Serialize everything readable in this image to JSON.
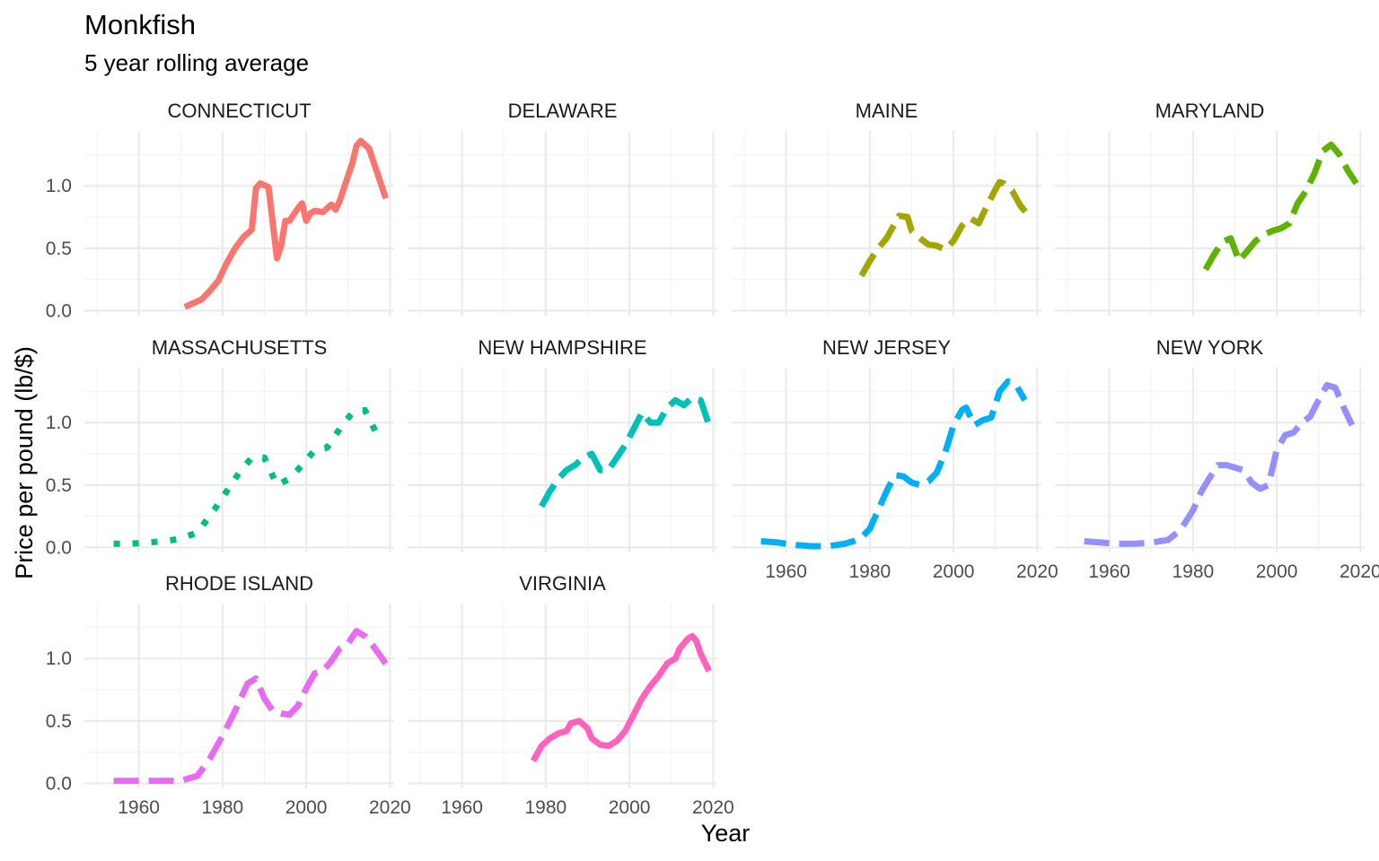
{
  "chart_data": {
    "type": "line",
    "title": "Monkfish",
    "subtitle": "5 year rolling average",
    "xlabel": "Year",
    "ylabel": "Price per pound (lb/$)",
    "xlim": [
      1947,
      2021
    ],
    "ylim": [
      -0.04,
      1.44
    ],
    "x_ticks": [
      1960,
      1980,
      2000,
      2020
    ],
    "y_ticks": [
      0.0,
      0.5,
      1.0
    ],
    "x_tick_labels": [
      "1960",
      "1980",
      "2000",
      "2020"
    ],
    "y_tick_labels": [
      "0.0",
      "0.5",
      "1.0"
    ],
    "grid": true,
    "legend": "none",
    "facets": [
      {
        "name": "CONNECTICUT",
        "color": "#F8766D",
        "dash": "solid",
        "x": [
          1971,
          1973,
          1975,
          1977,
          1979,
          1981,
          1983,
          1985,
          1987,
          1988,
          1989,
          1991,
          1993,
          1994,
          1995,
          1996,
          1998,
          1999,
          2000,
          2001,
          2002,
          2004,
          2006,
          2007,
          2008,
          2010,
          2011,
          2012,
          2013,
          2015,
          2017,
          2019
        ],
        "y": [
          0.03,
          0.06,
          0.09,
          0.16,
          0.24,
          0.38,
          0.5,
          0.59,
          0.65,
          0.98,
          1.02,
          0.99,
          0.42,
          0.52,
          0.72,
          0.72,
          0.82,
          0.86,
          0.72,
          0.78,
          0.8,
          0.79,
          0.85,
          0.81,
          0.88,
          1.08,
          1.18,
          1.32,
          1.36,
          1.3,
          1.1,
          0.9
        ]
      },
      {
        "name": "DELAWARE",
        "color": "#E58700",
        "dash": "none",
        "x": [],
        "y": []
      },
      {
        "name": "MAINE",
        "color": "#A3A500",
        "dash": "longdash",
        "x": [
          1978,
          1980,
          1982,
          1984,
          1986,
          1987,
          1989,
          1990,
          1992,
          1994,
          1996,
          1998,
          2000,
          2002,
          2004,
          2006,
          2008,
          2010,
          2011,
          2012,
          2014,
          2016,
          2018
        ],
        "y": [
          0.28,
          0.4,
          0.5,
          0.58,
          0.7,
          0.76,
          0.75,
          0.64,
          0.58,
          0.53,
          0.52,
          0.49,
          0.56,
          0.68,
          0.74,
          0.7,
          0.84,
          0.97,
          1.03,
          1.02,
          0.96,
          0.84,
          0.76
        ]
      },
      {
        "name": "MARYLAND",
        "color": "#5EB300",
        "dash": "longdash",
        "x": [
          1983,
          1985,
          1987,
          1989,
          1991,
          1993,
          1995,
          1997,
          1999,
          2001,
          2003,
          2005,
          2007,
          2009,
          2011,
          2013,
          2015,
          2017,
          2019
        ],
        "y": [
          0.33,
          0.45,
          0.55,
          0.58,
          0.4,
          0.48,
          0.56,
          0.61,
          0.64,
          0.66,
          0.7,
          0.86,
          0.96,
          1.1,
          1.28,
          1.33,
          1.25,
          1.12,
          1.02
        ]
      },
      {
        "name": "MASSACHUSETTS",
        "color": "#00BF7D",
        "dash": "dotted",
        "x": [
          1954,
          1958,
          1962,
          1966,
          1970,
          1974,
          1978,
          1981,
          1984,
          1987,
          1990,
          1993,
          1996,
          1999,
          2002,
          2005,
          2008,
          2011,
          2014,
          2017
        ],
        "y": [
          0.03,
          0.03,
          0.04,
          0.05,
          0.07,
          0.12,
          0.3,
          0.45,
          0.6,
          0.72,
          0.72,
          0.5,
          0.55,
          0.66,
          0.78,
          0.8,
          0.95,
          1.08,
          1.1,
          0.9
        ]
      },
      {
        "name": "NEW HAMPSHIRE",
        "color": "#00C0B8",
        "dash": "longdash",
        "x": [
          1979,
          1981,
          1983,
          1985,
          1987,
          1989,
          1991,
          1993,
          1995,
          1997,
          1999,
          2001,
          2003,
          2005,
          2007,
          2009,
          2011,
          2013,
          2015,
          2017,
          2019
        ],
        "y": [
          0.33,
          0.45,
          0.55,
          0.62,
          0.66,
          0.72,
          0.75,
          0.62,
          0.62,
          0.72,
          0.82,
          0.95,
          1.08,
          1.0,
          1.0,
          1.12,
          1.18,
          1.14,
          1.2,
          1.18,
          0.98
        ]
      },
      {
        "name": "NEW JERSEY",
        "color": "#00B0F6",
        "dash": "longdash",
        "x": [
          1954,
          1958,
          1962,
          1966,
          1970,
          1974,
          1976,
          1978,
          1980,
          1982,
          1984,
          1986,
          1988,
          1990,
          1992,
          1994,
          1996,
          1998,
          2000,
          2002,
          2003,
          2005,
          2007,
          2009,
          2011,
          2013,
          2015,
          2017
        ],
        "y": [
          0.05,
          0.04,
          0.02,
          0.01,
          0.01,
          0.03,
          0.05,
          0.08,
          0.15,
          0.3,
          0.45,
          0.58,
          0.57,
          0.52,
          0.5,
          0.53,
          0.6,
          0.76,
          0.98,
          1.1,
          1.12,
          0.98,
          1.02,
          1.04,
          1.25,
          1.33,
          1.3,
          1.18
        ]
      },
      {
        "name": "NEW YORK",
        "color": "#9590FF",
        "dash": "longdash",
        "x": [
          1954,
          1958,
          1962,
          1966,
          1970,
          1974,
          1977,
          1980,
          1982,
          1984,
          1986,
          1988,
          1990,
          1992,
          1994,
          1996,
          1998,
          2000,
          2002,
          2004,
          2006,
          2008,
          2010,
          2012,
          2014,
          2016,
          2018
        ],
        "y": [
          0.05,
          0.04,
          0.03,
          0.03,
          0.04,
          0.06,
          0.14,
          0.3,
          0.45,
          0.56,
          0.66,
          0.66,
          0.64,
          0.62,
          0.52,
          0.47,
          0.5,
          0.78,
          0.9,
          0.92,
          1.0,
          1.05,
          1.18,
          1.3,
          1.28,
          1.12,
          0.98
        ]
      },
      {
        "name": "RHODE ISLAND",
        "color": "#E76BF3",
        "dash": "longdash",
        "x": [
          1954,
          1958,
          1962,
          1966,
          1970,
          1974,
          1977,
          1980,
          1983,
          1986,
          1988,
          1990,
          1992,
          1994,
          1996,
          1998,
          2000,
          2002,
          2004,
          2006,
          2008,
          2010,
          2012,
          2014,
          2016,
          2019
        ],
        "y": [
          0.02,
          0.02,
          0.02,
          0.02,
          0.02,
          0.06,
          0.2,
          0.38,
          0.58,
          0.8,
          0.84,
          0.68,
          0.58,
          0.56,
          0.55,
          0.62,
          0.76,
          0.88,
          0.9,
          0.98,
          1.08,
          1.12,
          1.22,
          1.18,
          1.1,
          0.96
        ]
      },
      {
        "name": "VIRGINIA",
        "color": "#FF62BC",
        "dash": "solid",
        "x": [
          1977,
          1979,
          1981,
          1983,
          1985,
          1986,
          1988,
          1990,
          1991,
          1993,
          1995,
          1997,
          1999,
          2001,
          2003,
          2005,
          2007,
          2009,
          2011,
          2012,
          2014,
          2015,
          2016,
          2017,
          2019
        ],
        "y": [
          0.18,
          0.3,
          0.36,
          0.4,
          0.42,
          0.48,
          0.5,
          0.44,
          0.36,
          0.31,
          0.3,
          0.34,
          0.42,
          0.55,
          0.68,
          0.78,
          0.86,
          0.96,
          1.0,
          1.08,
          1.16,
          1.18,
          1.14,
          1.04,
          0.9
        ]
      }
    ]
  }
}
